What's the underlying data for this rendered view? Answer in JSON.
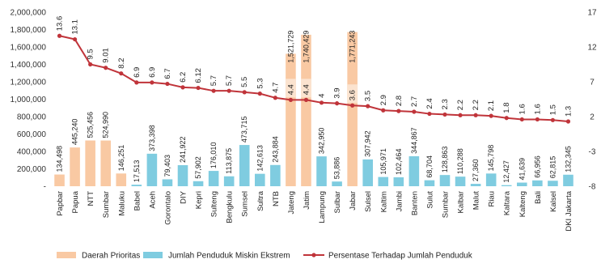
{
  "chart_data": {
    "type": "bar",
    "categories": [
      "Papbar",
      "Papua",
      "NTT",
      "Sumbar",
      "Maluku",
      "Babel",
      "Aceh",
      "Gorontalo",
      "DIY",
      "Kepri",
      "Sulteng",
      "Bengkulu",
      "Sumsel",
      "Sultra",
      "NTB",
      "Jateng",
      "Jatim",
      "Lampung",
      "Sulbar",
      "Jabar",
      "Sulsel",
      "Kaltim",
      "Jambi",
      "Banten",
      "Sulut",
      "Sumbar",
      "Kalbar",
      "Malut",
      "Riau",
      "Kaltara",
      "Kalteng",
      "Bali",
      "Kalsel",
      "DKI Jakarta"
    ],
    "series": [
      {
        "name": "Jumlah Penduduk Miskin Ekstrem",
        "axis": "left",
        "values": [
          134498,
          445240,
          525456,
          524990,
          146251,
          17513,
          373398,
          79403,
          241922,
          57902,
          176010,
          113875,
          473715,
          142613,
          243884,
          1521729,
          1740429,
          342950,
          53886,
          1771243,
          307942,
          105971,
          102464,
          344867,
          68704,
          128863,
          110288,
          27360,
          145798,
          12427,
          41639,
          66956,
          62815,
          132345
        ],
        "value_labels": [
          "134,498",
          "445,240",
          "525,456",
          "524,990",
          "146,251",
          "17,513",
          "373,398",
          "79,403",
          "241,922",
          "57,902",
          "176,010",
          "113,875",
          "473,715",
          "142,613",
          "243,884",
          "1,521,729",
          "1,740,429",
          "342,950",
          "53,886",
          "1,771,243",
          "307,942",
          "105,971",
          "102,464",
          "344,867",
          "68,704",
          "128,863",
          "110,288",
          "27,360",
          "145,798",
          "12,427",
          "41,639",
          "66,956",
          "62,815",
          "132,345"
        ],
        "priority": [
          true,
          true,
          true,
          true,
          true,
          false,
          false,
          false,
          false,
          false,
          false,
          false,
          false,
          false,
          false,
          true,
          true,
          false,
          false,
          true,
          false,
          false,
          false,
          false,
          false,
          false,
          false,
          false,
          false,
          false,
          false,
          false,
          false,
          false
        ]
      },
      {
        "name": "Persentase Terhadap Jumlah Penduduk",
        "axis": "right",
        "values": [
          13.6,
          13.1,
          9.5,
          9.01,
          8.2,
          6.9,
          6.9,
          6.7,
          6.2,
          6.12,
          5.7,
          5.7,
          5.5,
          5.3,
          4.7,
          4.4,
          4.4,
          4,
          3.9,
          3.6,
          3.5,
          2.9,
          2.8,
          2.7,
          2.4,
          2.3,
          2.2,
          2.2,
          2.1,
          1.8,
          1.6,
          1.6,
          1.5,
          1.3
        ],
        "value_labels": [
          "13.6",
          "13.1",
          "9.5",
          "9.01",
          "8.2",
          "6.9",
          "6.9",
          "6.7",
          "6.2",
          "6.12",
          "5.7",
          "5.7",
          "5.5",
          "5.3",
          "4.7",
          "4.4",
          "4.4",
          "4",
          "3.9",
          "3.6",
          "3.5",
          "2.9",
          "2.8",
          "2.7",
          "2.4",
          "2.3",
          "2.2",
          "2.2",
          "2.1",
          "1.8",
          "1.6",
          "1.6",
          "1.5",
          "1.3"
        ]
      }
    ],
    "left_axis": {
      "ylim": [
        0,
        2000000
      ],
      "ticks": [
        0,
        200000,
        400000,
        600000,
        800000,
        1000000,
        1200000,
        1400000,
        1600000,
        1800000,
        2000000
      ],
      "tick_labels": [
        "-",
        "200,000",
        "400,000",
        "600,000",
        "800,000",
        "1,000,000",
        "1,200,000",
        "1,400,000",
        "1,600,000",
        "1,800,000",
        "2,000,000"
      ]
    },
    "right_axis": {
      "ylim": [
        -8,
        17
      ],
      "ticks": [
        -8,
        -3,
        2,
        7,
        12,
        17
      ],
      "tick_labels": [
        "-8",
        "-3",
        "2",
        "7",
        "12",
        "17"
      ]
    },
    "legend": {
      "placement": "bottom",
      "items": [
        {
          "label": "Daerah Prioritas",
          "kind": "bar",
          "color": "#F9C9A3"
        },
        {
          "label": "Jumlah Penduduk Miskin Ekstrem",
          "kind": "bar",
          "color": "#7FCCE0"
        },
        {
          "label": "Persentase Terhadap Jumlah Penduduk",
          "kind": "line",
          "color": "#C0343A"
        }
      ]
    },
    "colors": {
      "priority_bar": "#F9C9A3",
      "bar": "#7FCCE0",
      "line": "#C0343A",
      "label_box": "#FBE3CF"
    },
    "grid": false
  }
}
